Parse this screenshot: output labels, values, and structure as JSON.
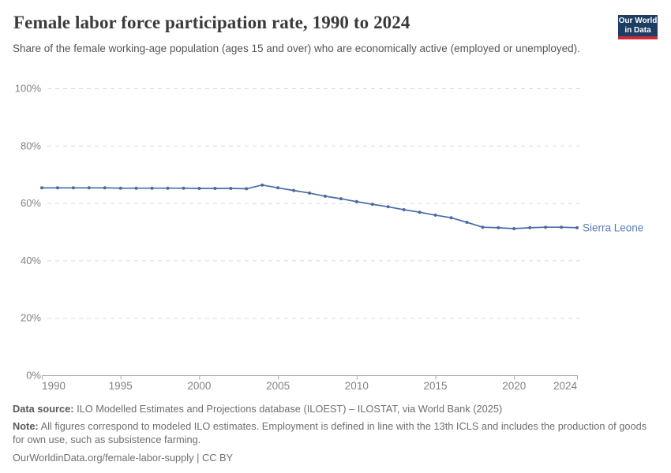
{
  "header": {
    "title": "Female labor force participation rate, 1990 to 2024",
    "subtitle": "Share of the female working-age population (ages 15 and over) who are economically active (employed or unemployed).",
    "logo": {
      "line1": "Our World",
      "line2": "in Data"
    }
  },
  "chart_data": {
    "type": "line",
    "title": "Female labor force participation rate, 1990 to 2024",
    "xlabel": "",
    "ylabel": "",
    "xlim": [
      1990,
      2024
    ],
    "ylim": [
      0,
      100
    ],
    "grid": "horizontal-dashed",
    "legend_position": "end-of-line-label",
    "x_ticks": [
      1990,
      1995,
      2000,
      2005,
      2010,
      2015,
      2020,
      2024
    ],
    "y_ticks": [
      {
        "value": 0,
        "label": "0%"
      },
      {
        "value": 20,
        "label": "20%"
      },
      {
        "value": 40,
        "label": "40%"
      },
      {
        "value": 60,
        "label": "60%"
      },
      {
        "value": 80,
        "label": "80%"
      },
      {
        "value": 100,
        "label": "100%"
      }
    ],
    "series": [
      {
        "name": "Sierra Leone",
        "color": "#4a6ba3",
        "label_color": "#587ab4",
        "x": [
          1990,
          1991,
          1992,
          1993,
          1994,
          1995,
          1996,
          1997,
          1998,
          1999,
          2000,
          2001,
          2002,
          2003,
          2004,
          2005,
          2006,
          2007,
          2008,
          2009,
          2010,
          2011,
          2012,
          2013,
          2014,
          2015,
          2016,
          2017,
          2018,
          2019,
          2020,
          2021,
          2022,
          2023,
          2024
        ],
        "values": [
          65.3,
          65.3,
          65.3,
          65.3,
          65.3,
          65.2,
          65.2,
          65.2,
          65.2,
          65.2,
          65.1,
          65.1,
          65.1,
          65.0,
          66.3,
          65.3,
          64.4,
          63.5,
          62.4,
          61.5,
          60.5,
          59.6,
          58.7,
          57.7,
          56.8,
          55.8,
          54.9,
          53.3,
          51.6,
          51.4,
          51.1,
          51.4,
          51.6,
          51.6,
          51.4
        ]
      }
    ]
  },
  "footer": {
    "data_source_label": "Data source:",
    "data_source_text": "ILO Modelled Estimates and Projections database (ILOEST) – ILOSTAT, via World Bank (2025)",
    "note_label": "Note:",
    "note_text": "All figures correspond to modeled ILO estimates. Employment is defined in line with the 13th ICLS and includes the production of goods for own use, such as subsistence farming.",
    "url": "OurWorldinData.org/female-labor-supply",
    "separator": "|",
    "license": "CC BY"
  },
  "colors": {
    "gridline": "#dbdbdb",
    "axis": "#a6a6a6",
    "tick_text": "#828282",
    "logo_bg": "#1d3d63",
    "logo_accent": "#cc2b36"
  }
}
